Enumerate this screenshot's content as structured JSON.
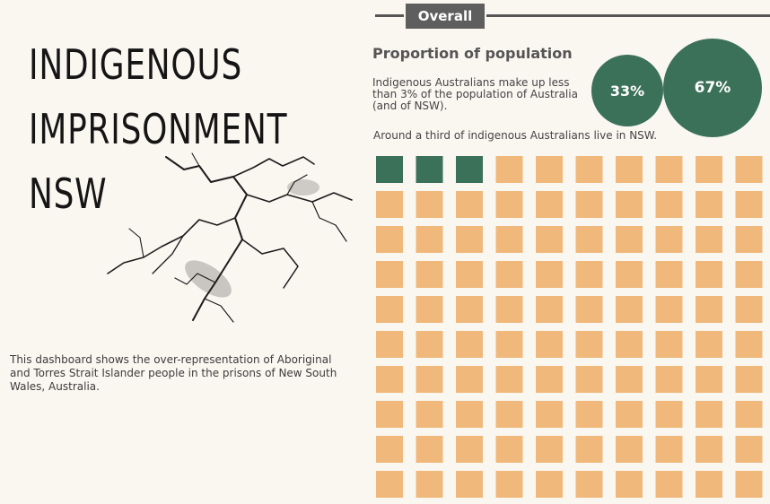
{
  "title": {
    "lines": [
      "INDIGENOUS",
      "IMPRISONMENT",
      "NSW"
    ]
  },
  "description": "This dashboard shows the over-representation of Aboriginal and Torres Strait Islander people in the prisons of New South Wales, Australia.",
  "section": {
    "label": "Overall"
  },
  "proportion": {
    "heading": "Proportion of population",
    "text": "Indigenous Australians make up less than 3% of the population of Australia (and of NSW).",
    "nsw_text": "Around a third of indigenous Australians live in NSW."
  },
  "colors": {
    "indigenous": "#3c7159",
    "other": "#f0b97b",
    "background": "#faf7f1"
  },
  "chart_data": [
    {
      "type": "pie",
      "slices": [
        {
          "label": "33%",
          "value": 33
        },
        {
          "label": "67%",
          "value": 67
        }
      ]
    },
    {
      "type": "heatmap",
      "grid_rows": 10,
      "grid_cols": 10,
      "total_cells": 100,
      "highlighted_cells": 3
    }
  ]
}
